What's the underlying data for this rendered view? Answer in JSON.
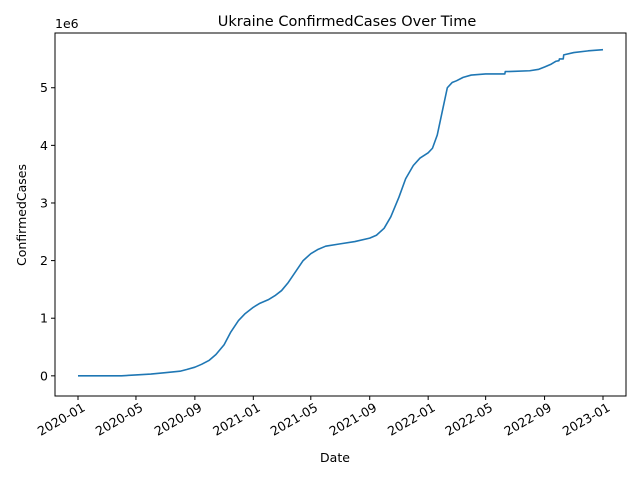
{
  "chart_data": {
    "type": "line",
    "title": "Ukraine  ConfirmedCases Over Time",
    "xlabel": "Date",
    "ylabel": "ConfirmedCases",
    "y_offset_label": "1e6",
    "x_ticks": [
      "2020-01",
      "2020-05",
      "2020-09",
      "2021-01",
      "2021-05",
      "2021-09",
      "2022-01",
      "2022-05",
      "2022-09",
      "2023-01"
    ],
    "y_ticks": [
      "0",
      "1",
      "2",
      "3",
      "4",
      "5"
    ],
    "ylim": [
      -350000,
      5950000
    ],
    "xlim": [
      "2019-11-14",
      "2023-02-18"
    ],
    "grid": false,
    "line_color": "#1f77b4",
    "series": [
      {
        "x": [
          "2020-01-01",
          "2020-03-01",
          "2020-04-01",
          "2020-05-01",
          "2020-06-01",
          "2020-07-01",
          "2020-08-01",
          "2020-08-15",
          "2020-09-01",
          "2020-09-15",
          "2020-10-01",
          "2020-10-15",
          "2020-11-01",
          "2020-11-15",
          "2020-12-01",
          "2020-12-15",
          "2021-01-01",
          "2021-01-15",
          "2021-02-01",
          "2021-02-15",
          "2021-03-01",
          "2021-03-15",
          "2021-04-01",
          "2021-04-15",
          "2021-05-01",
          "2021-05-15",
          "2021-06-01",
          "2021-07-01",
          "2021-08-01",
          "2021-09-01",
          "2021-09-15",
          "2021-10-01",
          "2021-10-15",
          "2021-11-01",
          "2021-11-15",
          "2021-12-01",
          "2021-12-15",
          "2022-01-01",
          "2022-01-10",
          "2022-01-20",
          "2022-02-01",
          "2022-02-10",
          "2022-02-20",
          "2022-03-01",
          "2022-03-15",
          "2022-04-01",
          "2022-05-01",
          "2022-06-10",
          "2022-06-11",
          "2022-07-01",
          "2022-08-01",
          "2022-08-20",
          "2022-09-01",
          "2022-09-15",
          "2022-09-25",
          "2022-10-01",
          "2022-10-02",
          "2022-10-10",
          "2022-10-11",
          "2022-11-01",
          "2022-12-01",
          "2023-01-01"
        ],
        "y": [
          0,
          0,
          1000,
          15000,
          30000,
          55000,
          80000,
          110000,
          150000,
          200000,
          270000,
          370000,
          540000,
          760000,
          960000,
          1080000,
          1190000,
          1260000,
          1320000,
          1390000,
          1480000,
          1620000,
          1830000,
          2000000,
          2120000,
          2190000,
          2250000,
          2290000,
          2330000,
          2390000,
          2440000,
          2560000,
          2760000,
          3100000,
          3420000,
          3650000,
          3780000,
          3870000,
          3950000,
          4180000,
          4650000,
          5000000,
          5090000,
          5120000,
          5180000,
          5220000,
          5240000,
          5240000,
          5280000,
          5285000,
          5295000,
          5320000,
          5360000,
          5410000,
          5460000,
          5470000,
          5500000,
          5500000,
          5570000,
          5610000,
          5640000,
          5660000
        ]
      }
    ]
  }
}
